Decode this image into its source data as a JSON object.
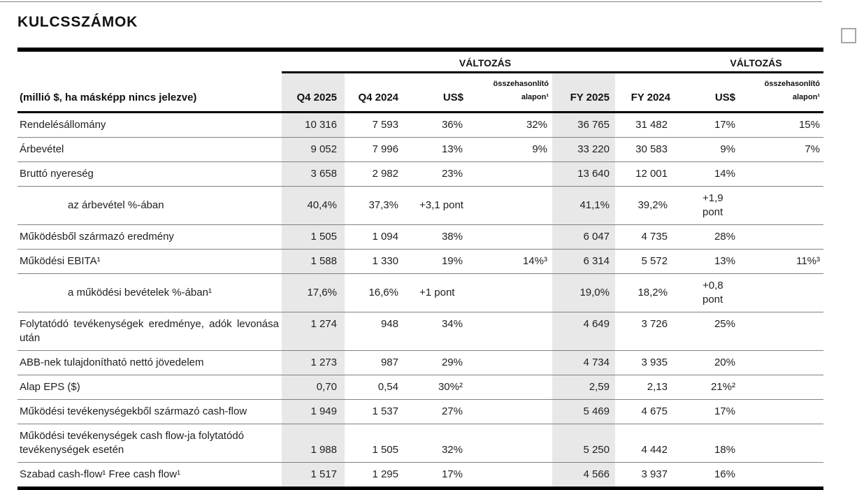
{
  "page": {
    "title": "KULCSSZÁMOK"
  },
  "widgets": {
    "checkbox_checked": false
  },
  "colors": {
    "highlight_column_bg": "#e8e8e8",
    "row_rule": "#808080",
    "heavy_rule": "#000000",
    "text": "#1f1f1f"
  },
  "table": {
    "unit_note": "(millió $, ha másképp nincs jelezve)",
    "change_label": "VÁLTOZÁS",
    "columns": {
      "q4_2025": "Q4 2025",
      "q4_2024": "Q4 2024",
      "usd": "US$",
      "comparable": "összehasonlító alapon¹",
      "fy_2025": "FY 2025",
      "fy_2024": "FY 2024"
    },
    "rows": [
      {
        "label": "Rendelésállomány",
        "indent": false,
        "q4_2025": "10 316",
        "q4_2024": "7 593",
        "usd_q4": "36%",
        "comp_q4": "32%",
        "fy_2025": "36 765",
        "fy_2024": "31 482",
        "usd_fy": "17%",
        "comp_fy": "15%"
      },
      {
        "label": "Árbevétel",
        "indent": false,
        "q4_2025": "9 052",
        "q4_2024": "7 996",
        "usd_q4": "13%",
        "comp_q4": "9%",
        "fy_2025": "33 220",
        "fy_2024": "30 583",
        "usd_fy": "9%",
        "comp_fy": "7%"
      },
      {
        "label": "Bruttó nyereség",
        "indent": false,
        "q4_2025": "3 658",
        "q4_2024": "2 982",
        "usd_q4": "23%",
        "comp_q4": "",
        "fy_2025": "13 640",
        "fy_2024": "12 001",
        "usd_fy": "14%",
        "comp_fy": ""
      },
      {
        "label": "az árbevétel %-ában",
        "indent": true,
        "q4_2025": "40,4%",
        "q4_2024": "37,3%",
        "usd_q4": "+3,1 pont",
        "comp_q4": "",
        "fy_2025": "41,1%",
        "fy_2024": "39,2%",
        "usd_fy": "+1,9 pont",
        "comp_fy": ""
      },
      {
        "label": "Működésből származó eredmény",
        "indent": false,
        "q4_2025": "1 505",
        "q4_2024": "1 094",
        "usd_q4": "38%",
        "comp_q4": "",
        "fy_2025": "6 047",
        "fy_2024": "4 735",
        "usd_fy": "28%",
        "comp_fy": ""
      },
      {
        "label": "Működési EBITA¹",
        "indent": false,
        "q4_2025": "1 588",
        "q4_2024": "1 330",
        "usd_q4": "19%",
        "comp_q4": "14%³",
        "fy_2025": "6 314",
        "fy_2024": "5 572",
        "usd_fy": "13%",
        "comp_fy": "11%³"
      },
      {
        "label": "a működési bevételek %-ában¹",
        "indent": true,
        "q4_2025": "17,6%",
        "q4_2024": "16,6%",
        "usd_q4": "+1 pont",
        "comp_q4": "",
        "fy_2025": "19,0%",
        "fy_2024": "18,2%",
        "usd_fy": "+0,8 pont",
        "comp_fy": ""
      },
      {
        "label": "Folytatódó tevékenységek eredménye, adók levonása után",
        "indent": false,
        "q4_2025": "1 274",
        "q4_2024": "948",
        "usd_q4": "34%",
        "comp_q4": "",
        "fy_2025": "4 649",
        "fy_2024": "3 726",
        "usd_fy": "25%",
        "comp_fy": ""
      },
      {
        "label": "ABB-nek tulajdonítható nettó jövedelem",
        "indent": false,
        "q4_2025": "1 273",
        "q4_2024": "987",
        "usd_q4": "29%",
        "comp_q4": "",
        "fy_2025": "4 734",
        "fy_2024": "3 935",
        "usd_fy": "20%",
        "comp_fy": ""
      },
      {
        "label": "Alap EPS ($)",
        "indent": false,
        "q4_2025": "0,70",
        "q4_2024": "0,54",
        "usd_q4": "30%²",
        "comp_q4": "",
        "fy_2025": "2,59",
        "fy_2024": "2,13",
        "usd_fy": "21%²",
        "comp_fy": ""
      },
      {
        "label": "Működési tevékenységekből származó cash-flow",
        "indent": false,
        "q4_2025": "1 949",
        "q4_2024": "1 537",
        "usd_q4": "27%",
        "comp_q4": "",
        "fy_2025": "5 469",
        "fy_2024": "4 675",
        "usd_fy": "17%",
        "comp_fy": ""
      },
      {
        "label": "Működési tevékenységek cash flow-ja folytatódó tevékenységek esetén",
        "indent": false,
        "q4_2025": "1 988",
        "q4_2024": "1 505",
        "usd_q4": "32%",
        "comp_q4": "",
        "fy_2025": "5 250",
        "fy_2024": "4 442",
        "usd_fy": "18%",
        "comp_fy": ""
      },
      {
        "label": "Szabad cash-flow¹ Free cash flow¹",
        "indent": false,
        "q4_2025": "1 517",
        "q4_2024": "1 295",
        "usd_q4": "17%",
        "comp_q4": "",
        "fy_2025": "4 566",
        "fy_2024": "3 937",
        "usd_fy": "16%",
        "comp_fy": ""
      }
    ]
  }
}
